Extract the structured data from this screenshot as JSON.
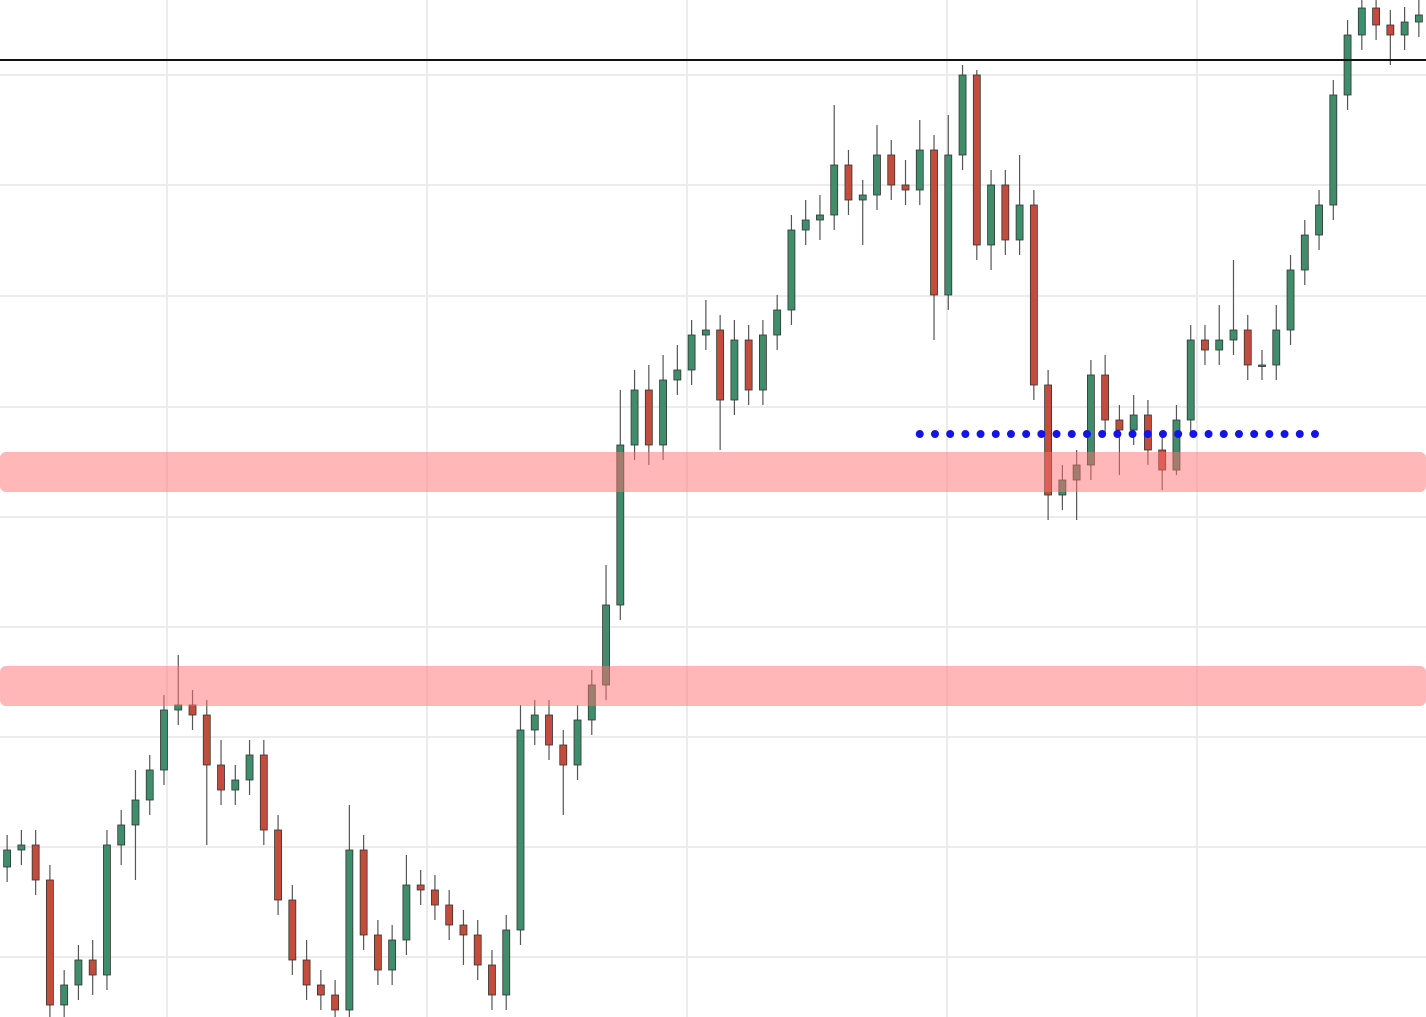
{
  "chart_data": {
    "type": "candlestick",
    "open": [
      15.0,
      16.7,
      17.2,
      13.7,
      1.2,
      3.2,
      5.7,
      4.2,
      17.2,
      19.2,
      21.7,
      24.7,
      30.7,
      31.2,
      30.2,
      25.2,
      22.7,
      23.7,
      26.2,
      18.7,
      11.7,
      5.7,
      3.2,
      2.2,
      0.7,
      16.7,
      8.2,
      4.7,
      7.7,
      13.2,
      12.7,
      11.2,
      9.2,
      8.2,
      5.2,
      2.2,
      8.7,
      28.7,
      30.2,
      27.2,
      25.2,
      29.7,
      33.2,
      41.2,
      57.2,
      62.7,
      57.2,
      63.7,
      64.7,
      68.2,
      68.7,
      61.7,
      67.7,
      62.7,
      68.2,
      70.7,
      78.7,
      79.7,
      80.2,
      85.2,
      81.7,
      82.2,
      86.2,
      83.2,
      82.7,
      86.7,
      72.2,
      86.2,
      94.2,
      77.2,
      83.2,
      77.7,
      81.2,
      63.2,
      52.2,
      53.7,
      55.2,
      64.2,
      59.7,
      58.7,
      60.2,
      56.7,
      54.7,
      59.7,
      67.7,
      66.7,
      67.7,
      68.7,
      65.2,
      65.2,
      68.7,
      74.7,
      78.2,
      81.2,
      92.2,
      98.2,
      100.9,
      99.2,
      98.2,
      99.5
    ],
    "high": [
      18.2,
      18.7,
      18.7,
      15.2,
      4.7,
      7.2,
      7.7,
      18.7,
      20.7,
      24.7,
      26.2,
      32.2,
      36.2,
      32.7,
      31.7,
      27.7,
      25.2,
      27.7,
      27.7,
      20.2,
      13.2,
      7.7,
      4.7,
      3.7,
      21.2,
      18.2,
      9.7,
      9.2,
      16.2,
      14.7,
      14.2,
      12.7,
      10.7,
      9.7,
      6.7,
      10.2,
      31.2,
      31.7,
      31.7,
      28.7,
      31.2,
      34.7,
      45.2,
      62.7,
      64.7,
      65.2,
      66.2,
      67.2,
      69.7,
      71.7,
      70.2,
      69.7,
      69.2,
      69.7,
      72.2,
      80.2,
      81.7,
      82.2,
      91.2,
      86.7,
      83.7,
      89.2,
      87.7,
      85.7,
      89.7,
      88.2,
      90.2,
      95.2,
      94.7,
      84.7,
      84.7,
      86.2,
      82.7,
      64.7,
      55.2,
      56.7,
      65.7,
      66.2,
      61.2,
      62.2,
      61.7,
      58.2,
      61.2,
      69.2,
      69.2,
      71.2,
      75.7,
      70.2,
      66.7,
      71.2,
      76.2,
      79.7,
      82.7,
      93.7,
      99.7,
      102.4,
      102.4,
      100.7,
      101.0,
      101.7
    ],
    "low": [
      13.5,
      15.2,
      12.2,
      -0.3,
      -0.3,
      1.7,
      2.2,
      2.7,
      15.2,
      13.7,
      20.2,
      23.2,
      29.2,
      28.7,
      17.2,
      21.2,
      21.2,
      22.2,
      17.2,
      10.2,
      4.2,
      1.7,
      0.7,
      -0.8,
      -0.8,
      6.7,
      3.2,
      3.2,
      6.2,
      11.2,
      9.7,
      7.7,
      5.2,
      3.7,
      0.7,
      0.7,
      7.2,
      27.2,
      25.7,
      20.2,
      23.7,
      28.2,
      31.7,
      39.7,
      55.7,
      55.2,
      55.7,
      62.2,
      63.2,
      66.7,
      56.7,
      60.2,
      61.2,
      61.2,
      66.7,
      69.2,
      77.2,
      77.7,
      78.7,
      80.2,
      77.2,
      80.7,
      81.7,
      81.2,
      81.2,
      67.7,
      70.7,
      84.7,
      75.7,
      74.7,
      76.2,
      76.2,
      61.7,
      49.7,
      50.7,
      49.7,
      53.7,
      58.2,
      54.2,
      57.2,
      55.2,
      52.7,
      54.2,
      58.2,
      65.2,
      65.2,
      66.2,
      63.7,
      63.7,
      63.7,
      67.2,
      73.2,
      76.7,
      79.7,
      90.7,
      96.7,
      97.7,
      95.2,
      96.7,
      98.0
    ],
    "close": [
      16.7,
      17.2,
      13.7,
      1.2,
      3.2,
      5.7,
      4.2,
      17.2,
      19.2,
      21.7,
      24.7,
      30.7,
      31.2,
      30.2,
      25.2,
      22.7,
      23.7,
      26.2,
      18.7,
      11.7,
      5.7,
      3.2,
      2.2,
      0.7,
      16.7,
      8.2,
      4.7,
      7.7,
      13.2,
      12.7,
      11.2,
      9.2,
      8.2,
      5.2,
      2.2,
      8.7,
      28.7,
      30.2,
      27.2,
      25.2,
      29.7,
      33.2,
      41.2,
      57.2,
      62.7,
      57.2,
      63.7,
      64.7,
      68.2,
      68.7,
      61.7,
      67.7,
      62.7,
      68.2,
      70.7,
      78.7,
      79.7,
      80.2,
      85.2,
      81.7,
      82.2,
      86.2,
      83.2,
      82.7,
      86.7,
      72.2,
      86.2,
      94.2,
      77.2,
      83.2,
      77.7,
      81.2,
      63.2,
      52.2,
      53.7,
      55.2,
      64.2,
      59.7,
      58.7,
      60.2,
      56.7,
      54.7,
      59.7,
      67.7,
      66.7,
      67.7,
      68.7,
      65.2,
      65.2,
      68.7,
      74.7,
      78.2,
      81.2,
      92.2,
      98.2,
      100.9,
      99.2,
      98.2,
      99.5,
      100.2
    ],
    "up_color": "#3f8d6b",
    "down_color": "#c24d3d",
    "ylim": [
      0,
      101.7
    ],
    "yticks": [
      94.2,
      83.2,
      72.1,
      61.0,
      50.0,
      39.0,
      28.0,
      17.0,
      6.0
    ],
    "grid": true,
    "zones": [
      {
        "from": 52.5,
        "to": 56.5,
        "color": "#ff6f6f"
      },
      {
        "from": 31.1,
        "to": 35.1,
        "color": "#ff6f6f"
      }
    ],
    "hline": {
      "value": 95.7,
      "color": "#111111"
    },
    "overlay": {
      "color": "#1414e6",
      "style": "dotted",
      "values": [
        null,
        null,
        null,
        null,
        null,
        null,
        null,
        null,
        null,
        null,
        null,
        null,
        null,
        null,
        null,
        null,
        null,
        null,
        null,
        null,
        null,
        null,
        null,
        null,
        null,
        null,
        null,
        null,
        null,
        null,
        null,
        null,
        null,
        null,
        null,
        null,
        null,
        null,
        null,
        null,
        null,
        null,
        null,
        null,
        null,
        null,
        null,
        null,
        null,
        null,
        null,
        null,
        null,
        null,
        null,
        null,
        null,
        null,
        null,
        null,
        null,
        null,
        null,
        null,
        58.3,
        58.3,
        58.3,
        58.3,
        58.3,
        58.3,
        58.3,
        58.3,
        58.3,
        58.3,
        58.3,
        58.3,
        58.3,
        58.3,
        58.3,
        58.3,
        58.3,
        58.3,
        58.3,
        58.3,
        58.3,
        58.3,
        58.3,
        58.3,
        58.3,
        58.3,
        58.3,
        58.3,
        58.3,
        null,
        null,
        null,
        null,
        null,
        null,
        null
      ]
    }
  }
}
